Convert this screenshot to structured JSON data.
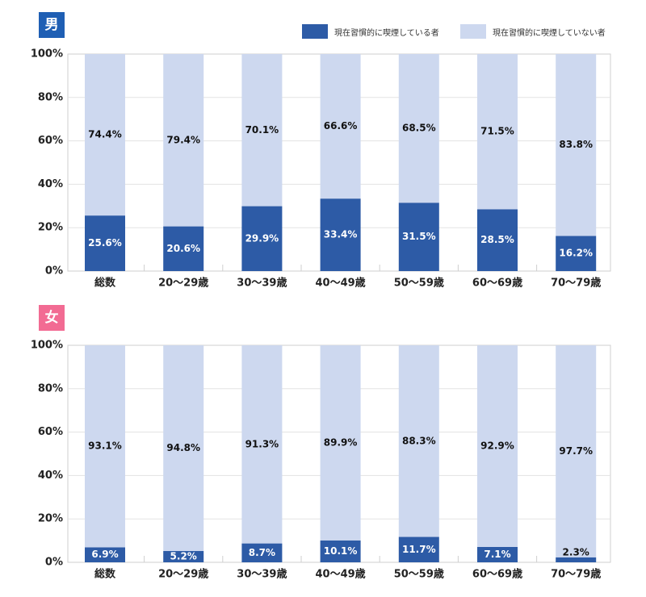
{
  "legend": {
    "smoker": "現在習慣的に喫煙している者",
    "nonsmoker": "現在習慣的に喫煙していない者"
  },
  "colors": {
    "smoker": "#2d5ba6",
    "nonsmoker": "#cdd8ef",
    "male_badge": "#1f5fb4",
    "female_badge": "#f26b93",
    "grid": "#e3e3e3",
    "frame": "#cfcfcf"
  },
  "y_ticks": [
    "0%",
    "20%",
    "40%",
    "60%",
    "80%",
    "100%"
  ],
  "chart_data": [
    {
      "type": "bar",
      "stacked": true,
      "title": "男",
      "categories": [
        "総数",
        "20～29歳",
        "30～39歳",
        "40～49歳",
        "50～59歳",
        "60～69歳",
        "70～79歳"
      ],
      "ylim": [
        0,
        100
      ],
      "y_ticks": [
        "0%",
        "20%",
        "40%",
        "60%",
        "80%",
        "100%"
      ],
      "series": [
        {
          "name": "現在習慣的に喫煙している者",
          "values": [
            25.6,
            20.6,
            29.9,
            33.4,
            31.5,
            28.5,
            16.2
          ],
          "labels": [
            "25.6%",
            "20.6%",
            "29.9%",
            "33.4%",
            "31.5%",
            "28.5%",
            "16.2%"
          ]
        },
        {
          "name": "現在習慣的に喫煙していない者",
          "values": [
            74.4,
            79.4,
            70.1,
            66.6,
            68.5,
            71.5,
            83.8
          ],
          "labels": [
            "74.4%",
            "79.4%",
            "70.1%",
            "66.6%",
            "68.5%",
            "71.5%",
            "83.8%"
          ]
        }
      ]
    },
    {
      "type": "bar",
      "stacked": true,
      "title": "女",
      "categories": [
        "総数",
        "20～29歳",
        "30～39歳",
        "40～49歳",
        "50～59歳",
        "60～69歳",
        "70～79歳"
      ],
      "ylim": [
        0,
        100
      ],
      "y_ticks": [
        "0%",
        "20%",
        "40%",
        "60%",
        "80%",
        "100%"
      ],
      "series": [
        {
          "name": "現在習慣的に喫煙している者",
          "values": [
            6.9,
            5.2,
            8.7,
            10.1,
            11.7,
            7.1,
            2.3
          ],
          "labels": [
            "6.9%",
            "5.2%",
            "8.7%",
            "10.1%",
            "11.7%",
            "7.1%",
            "2.3%"
          ]
        },
        {
          "name": "現在習慣的に喫煙していない者",
          "values": [
            93.1,
            94.8,
            91.3,
            89.9,
            88.3,
            92.9,
            97.7
          ],
          "labels": [
            "93.1%",
            "94.8%",
            "91.3%",
            "89.9%",
            "88.3%",
            "92.9%",
            "97.7%"
          ]
        }
      ]
    }
  ]
}
